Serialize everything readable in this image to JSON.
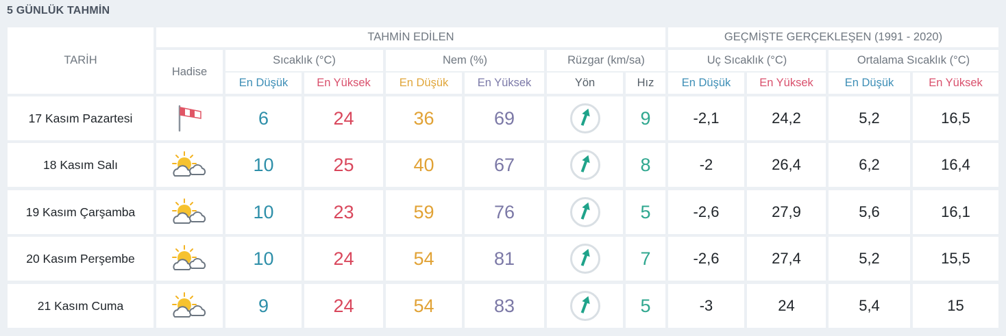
{
  "page_title": "5 GÜNLÜK TAHMİN",
  "headers": {
    "tarih": "TARİH",
    "tahmin": "TAHMİN EDİLEN",
    "gecmis": "GEÇMİŞTE GERÇEKLEŞEN (1991 - 2020)",
    "hadise": "Hadise",
    "sicaklik": "Sıcaklık (°C)",
    "nem": "Nem (%)",
    "ruzgar": "Rüzgar (km/sa)",
    "uc_sicaklik": "Uç Sıcaklık (°C)",
    "ort_sicaklik": "Ortalama Sıcaklık (°C)",
    "en_dusuk": "En Düşük",
    "en_yuksek": "En Yüksek",
    "yon": "Yön",
    "hiz": "Hız"
  },
  "colors": {
    "low_temp": "#2e8fa9",
    "high_temp": "#d9475c",
    "low_humidity": "#e1a235",
    "high_humidity": "#7b78a6",
    "wind_speed": "#2fa78f",
    "wind_arrow": "#1fa38a"
  },
  "days": [
    {
      "date": "17 Kasım Pazartesi",
      "icon": "windy-windsock-icon",
      "temp_low": "6",
      "temp_high": "24",
      "hum_low": "36",
      "hum_high": "69",
      "wind_dir_deg": 20,
      "wind_speed": "9",
      "ext_low": "-2,1",
      "ext_high": "24,2",
      "avg_low": "5,2",
      "avg_high": "16,5"
    },
    {
      "date": "18 Kasım Salı",
      "icon": "partly-cloudy-icon",
      "temp_low": "10",
      "temp_high": "25",
      "hum_low": "40",
      "hum_high": "67",
      "wind_dir_deg": 20,
      "wind_speed": "8",
      "ext_low": "-2",
      "ext_high": "26,4",
      "avg_low": "6,2",
      "avg_high": "16,4"
    },
    {
      "date": "19 Kasım Çarşamba",
      "icon": "partly-cloudy-icon",
      "temp_low": "10",
      "temp_high": "23",
      "hum_low": "59",
      "hum_high": "76",
      "wind_dir_deg": 20,
      "wind_speed": "5",
      "ext_low": "-2,6",
      "ext_high": "27,9",
      "avg_low": "5,6",
      "avg_high": "16,1"
    },
    {
      "date": "20 Kasım Perşembe",
      "icon": "partly-cloudy-icon",
      "temp_low": "10",
      "temp_high": "24",
      "hum_low": "54",
      "hum_high": "81",
      "wind_dir_deg": 20,
      "wind_speed": "7",
      "ext_low": "-2,6",
      "ext_high": "27,4",
      "avg_low": "5,2",
      "avg_high": "15,5"
    },
    {
      "date": "21 Kasım Cuma",
      "icon": "partly-cloudy-icon",
      "temp_low": "9",
      "temp_high": "24",
      "hum_low": "54",
      "hum_high": "83",
      "wind_dir_deg": 20,
      "wind_speed": "5",
      "ext_low": "-3",
      "ext_high": "24",
      "avg_low": "5,4",
      "avg_high": "15"
    }
  ]
}
